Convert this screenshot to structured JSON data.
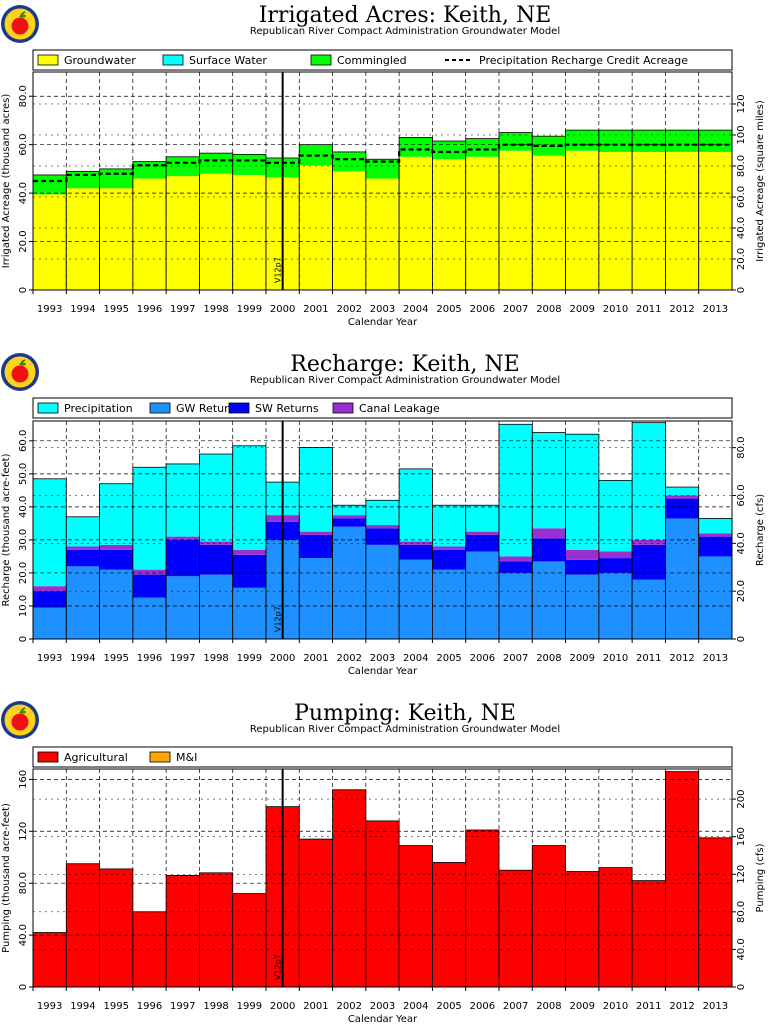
{
  "chart_data": [
    {
      "type": "bar",
      "stacked": true,
      "title": "Irrigated Acres: Keith, NE",
      "subtitle": "Republican River Compact Administration Groundwater Model",
      "xlabel": "Calendar Year",
      "ylabel": "Irrigated Acreage (thousand acres)",
      "ylabel_right": "Irrigated Acreage (square miles)",
      "ylim": [
        0,
        90
      ],
      "yticks": [
        "0",
        "20.0",
        "40.0",
        "60.0",
        "80.0"
      ],
      "yticks_values": [
        0,
        20,
        40,
        60,
        80
      ],
      "right_ticks": [
        "0",
        "20.0",
        "40.0",
        "60.0",
        "80.0",
        "100",
        "120"
      ],
      "right_ticks_values": [
        0,
        20,
        40,
        60,
        80,
        100,
        120
      ],
      "right_scale": 1.5625,
      "grid": true,
      "legend_position": "top",
      "categories": [
        "1993",
        "1994",
        "1995",
        "1996",
        "1997",
        "1998",
        "1999",
        "2000",
        "2001",
        "2002",
        "2003",
        "2004",
        "2005",
        "2006",
        "2007",
        "2008",
        "2009",
        "2010",
        "2011",
        "2012",
        "2013"
      ],
      "series": [
        {
          "name": "Groundwater",
          "color": "#ffff00",
          "values": [
            39.5,
            42,
            42,
            46,
            47,
            48,
            47.5,
            46.5,
            51.5,
            49,
            46,
            55,
            54,
            55,
            57.5,
            55.5,
            57.5,
            57,
            57,
            57,
            57
          ]
        },
        {
          "name": "Surface Water",
          "color": "#00ffff",
          "values": [
            0,
            0,
            0,
            0,
            0,
            0,
            0,
            0,
            0,
            0,
            0,
            0,
            0,
            0,
            0,
            0,
            0,
            0,
            0,
            0,
            0
          ]
        },
        {
          "name": "Commingled",
          "color": "#00ff00",
          "values": [
            8,
            7,
            8,
            7,
            8,
            8.5,
            8.5,
            8,
            8.5,
            8,
            8,
            8,
            7.5,
            7.5,
            7.5,
            8,
            8.5,
            9,
            9,
            9,
            9
          ]
        }
      ],
      "line_series": [
        {
          "name": "Precipitation Recharge Credit Acreage",
          "values": [
            45,
            47.5,
            48,
            51.5,
            52.5,
            53.5,
            53.5,
            52.5,
            55.5,
            54,
            53,
            58,
            57,
            58,
            60,
            59.5,
            60,
            60,
            60,
            60,
            60
          ]
        }
      ],
      "annotation": "V12p7"
    },
    {
      "type": "bar",
      "stacked": true,
      "title": "Recharge: Keith, NE",
      "subtitle": "Republican River Compact Administration Groundwater Model",
      "xlabel": "Calendar Year",
      "ylabel": "Recharge (thousand acre-feet)",
      "ylabel_right": "Recharge (cfs)",
      "ylim": [
        0,
        66
      ],
      "yticks": [
        "0",
        "10.0",
        "20.0",
        "30.0",
        "40.0",
        "50.0",
        "60.0"
      ],
      "yticks_values": [
        0,
        10,
        20,
        30,
        40,
        50,
        60
      ],
      "right_ticks": [
        "0",
        "20.0",
        "40.0",
        "60.0",
        "80.0"
      ],
      "right_ticks_values": [
        0,
        20,
        40,
        60,
        80
      ],
      "right_scale": 1.381,
      "grid": true,
      "legend_position": "top",
      "categories": [
        "1993",
        "1994",
        "1995",
        "1996",
        "1997",
        "1998",
        "1999",
        "2000",
        "2001",
        "2002",
        "2003",
        "2004",
        "2005",
        "2006",
        "2007",
        "2008",
        "2009",
        "2010",
        "2011",
        "2012",
        "2013"
      ],
      "series": [
        {
          "name": "GW Returns",
          "color": "#1e90ff",
          "values": [
            9.5,
            22,
            21,
            12.5,
            19,
            19.5,
            15.5,
            30,
            24.5,
            34,
            28.5,
            24,
            21,
            26.5,
            20,
            23.5,
            19.5,
            20,
            18,
            36.5,
            25
          ]
        },
        {
          "name": "SW Returns",
          "color": "#0000ff",
          "values": [
            5,
            5,
            6,
            7,
            11,
            9,
            10,
            5.5,
            7,
            2.5,
            5,
            4.5,
            6,
            5,
            3.5,
            7,
            4.5,
            4.5,
            10.5,
            6,
            6
          ]
        },
        {
          "name": "Canal Leakage",
          "color": "#9b30d0",
          "values": [
            1.5,
            1,
            1.5,
            1.5,
            1,
            1,
            1.5,
            2,
            1,
            1,
            1,
            1,
            1,
            1,
            1.5,
            3,
            3,
            2,
            1.5,
            1,
            1
          ]
        },
        {
          "name": "Precipitation",
          "color": "#00ffff",
          "values": [
            32.5,
            9,
            18.5,
            31,
            22,
            26.5,
            31.5,
            10,
            25.5,
            3,
            7.5,
            22,
            12.5,
            8,
            40,
            29,
            35,
            21.5,
            35.5,
            2.5,
            4.5
          ]
        }
      ],
      "annotation": "V12p7"
    },
    {
      "type": "bar",
      "stacked": true,
      "title": "Pumping: Keith, NE",
      "subtitle": "Republican River Compact Administration Groundwater Model",
      "xlabel": "Calendar Year",
      "ylabel": "Pumping (thousand acre-feet)",
      "ylabel_right": "Pumping (cfs)",
      "ylim": [
        0,
        168
      ],
      "yticks": [
        "0",
        "40.0",
        "80.0",
        "120",
        "160"
      ],
      "yticks_values": [
        0,
        40,
        80,
        120,
        160
      ],
      "right_ticks": [
        "0",
        "40.0",
        "80.0",
        "120",
        "160",
        "200"
      ],
      "right_ticks_values": [
        0,
        40,
        80,
        120,
        160,
        200
      ],
      "right_scale": 1.381,
      "grid": true,
      "legend_position": "top",
      "categories": [
        "1993",
        "1994",
        "1995",
        "1996",
        "1997",
        "1998",
        "1999",
        "2000",
        "2001",
        "2002",
        "2003",
        "2004",
        "2005",
        "2006",
        "2007",
        "2008",
        "2009",
        "2010",
        "2011",
        "2012",
        "2013"
      ],
      "series": [
        {
          "name": "Agricultural",
          "color": "#ff0000",
          "values": [
            42,
            95,
            91,
            58,
            86,
            88,
            72,
            139,
            114,
            152,
            128,
            109,
            96,
            121,
            90,
            109,
            89,
            92,
            82,
            166,
            115
          ]
        },
        {
          "name": "M&I",
          "color": "#ffa500",
          "values": [
            0,
            0,
            0,
            0,
            0,
            0,
            0,
            0,
            0,
            0,
            0,
            0,
            0,
            0,
            0,
            0,
            0,
            0,
            0,
            0,
            0
          ]
        }
      ],
      "annotation": "V12p7"
    }
  ]
}
